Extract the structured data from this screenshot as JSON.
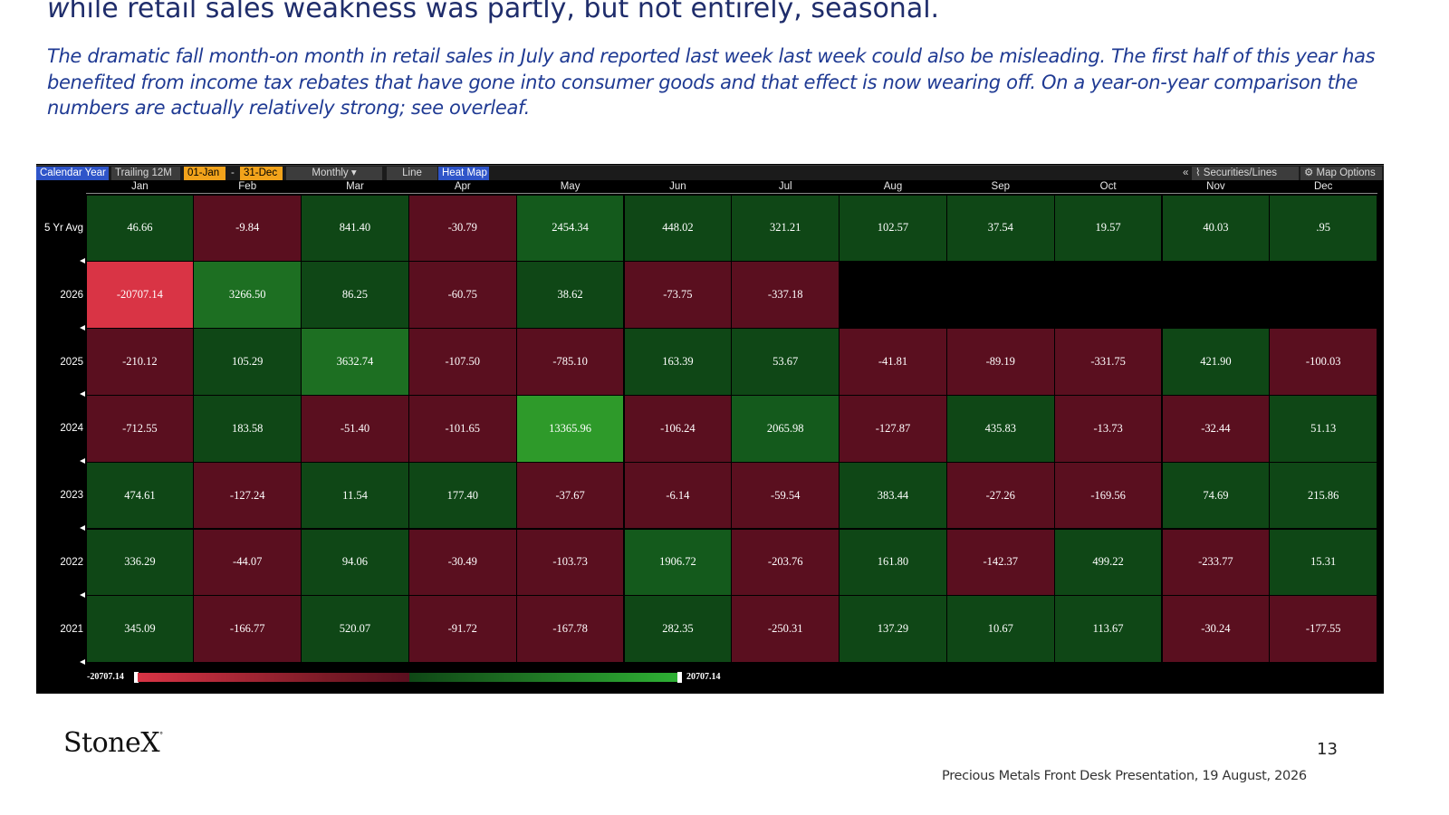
{
  "slide": {
    "headline_first": "w",
    "headline_rest": "hile retail sales weakness was partly, but not entirely, seasonal.",
    "subtext_lines": [
      "The dramatic fall month-on month in retail sales in July and reported last week last week could also be misleading.  The first half of this year has",
      "benefited from income tax rebates that have gone into consumer goods and that effect is now wearing off.  On a year-on-year comparison the",
      "numbers are actually relatively strong; see overleaf."
    ],
    "logo": "StoneX",
    "logo_mark": "°",
    "page_number": "13",
    "footer": "Precious Metals Front Desk Presentation, 19 August, 2026"
  },
  "toolbar": {
    "calendar_year": "Calendar Year",
    "trailing": "Trailing 12M",
    "start_date": "01-Jan",
    "dash": "-",
    "end_date": "31-Dec",
    "frequency": "Monthly ▾",
    "line": "Line",
    "heat_map": "Heat Map",
    "collapse": "«",
    "securities": "⌇ Securities/Lines",
    "map_options": "⚙ Map Options"
  },
  "chart_data": {
    "type": "heatmap",
    "columns": [
      "Jan",
      "Feb",
      "Mar",
      "Apr",
      "May",
      "Jun",
      "Jul",
      "Aug",
      "Sep",
      "Oct",
      "Nov",
      "Dec"
    ],
    "rows": [
      {
        "label": "5 Yr Avg",
        "values": [
          "46.66",
          "-9.84",
          "841.40",
          "-30.79",
          "2454.34",
          "448.02",
          "321.21",
          "102.57",
          "37.54",
          "19.57",
          "40.03",
          ".95"
        ]
      },
      {
        "label": "2026",
        "values": [
          "-20707.14",
          "3266.50",
          "86.25",
          "-60.75",
          "38.62",
          "-73.75",
          "-337.18",
          "",
          "",
          "",
          "",
          ""
        ]
      },
      {
        "label": "2025",
        "values": [
          "-210.12",
          "105.29",
          "3632.74",
          "-107.50",
          "-785.10",
          "163.39",
          "53.67",
          "-41.81",
          "-89.19",
          "-331.75",
          "421.90",
          "-100.03"
        ]
      },
      {
        "label": "2024",
        "values": [
          "-712.55",
          "183.58",
          "-51.40",
          "-101.65",
          "13365.96",
          "-106.24",
          "2065.98",
          "-127.87",
          "435.83",
          "-13.73",
          "-32.44",
          "51.13"
        ]
      },
      {
        "label": "2023",
        "values": [
          "474.61",
          "-127.24",
          "11.54",
          "177.40",
          "-37.67",
          "-6.14",
          "-59.54",
          "383.44",
          "-27.26",
          "-169.56",
          "74.69",
          "215.86"
        ]
      },
      {
        "label": "2022",
        "values": [
          "336.29",
          "-44.07",
          "94.06",
          "-30.49",
          "-103.73",
          "1906.72",
          "-203.76",
          "161.80",
          "-142.37",
          "499.22",
          "-233.77",
          "15.31"
        ]
      },
      {
        "label": "2021",
        "values": [
          "345.09",
          "-166.77",
          "520.07",
          "-91.72",
          "-167.78",
          "282.35",
          "-250.31",
          "137.29",
          "10.67",
          "113.67",
          "-30.24",
          "-177.55"
        ]
      }
    ],
    "scale_min": "-20707.14",
    "scale_max": "20707.14",
    "colors": {
      "negative": "#5a0f1f",
      "negative_extreme": "#d93445",
      "positive": "#0f4716",
      "positive_extreme": "#2e9a2a"
    }
  }
}
